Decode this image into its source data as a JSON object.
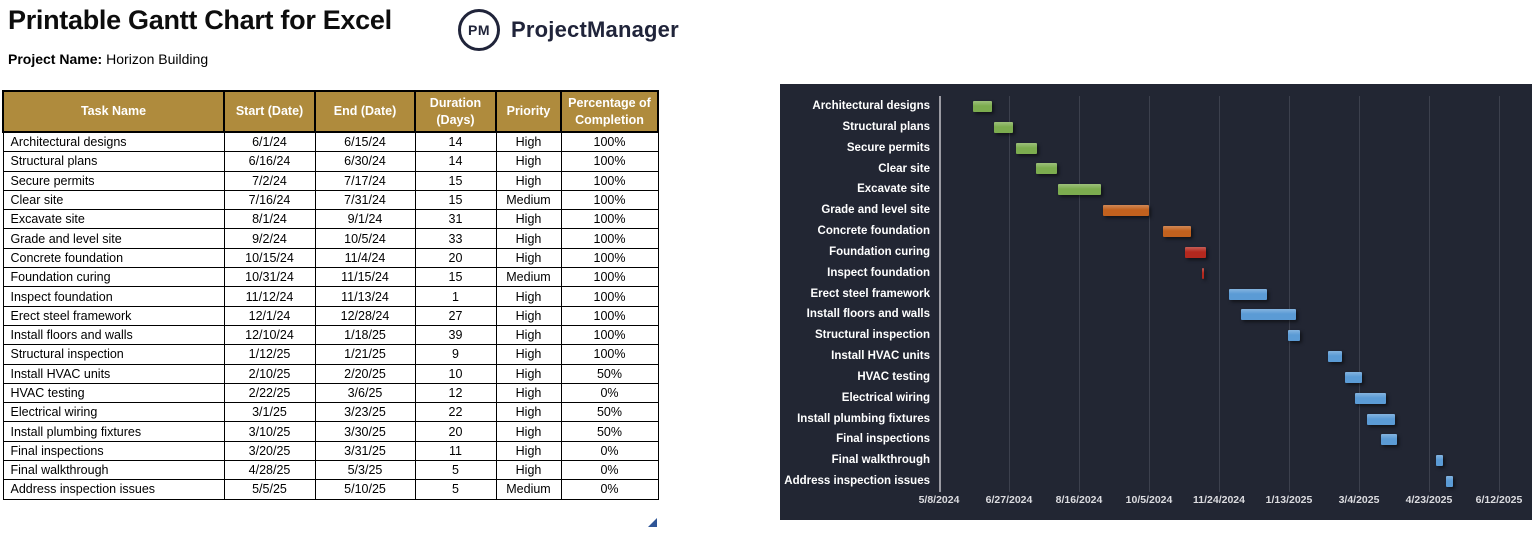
{
  "header": {
    "title": "Printable Gantt Chart for Excel",
    "project_label": "Project Name:",
    "project_name": "Horizon Building",
    "logo_monogram": "PM",
    "logo_text": "ProjectManager"
  },
  "table": {
    "columns": [
      "Task Name",
      "Start (Date)",
      "End (Date)",
      "Duration (Days)",
      "Priority",
      "Percentage of Completion"
    ],
    "rows": [
      [
        "Architectural designs",
        "6/1/24",
        "6/15/24",
        "14",
        "High",
        "100%"
      ],
      [
        "Structural plans",
        "6/16/24",
        "6/30/24",
        "14",
        "High",
        "100%"
      ],
      [
        "Secure permits",
        "7/2/24",
        "7/17/24",
        "15",
        "High",
        "100%"
      ],
      [
        "Clear site",
        "7/16/24",
        "7/31/24",
        "15",
        "Medium",
        "100%"
      ],
      [
        "Excavate site",
        "8/1/24",
        "9/1/24",
        "31",
        "High",
        "100%"
      ],
      [
        "Grade and level site",
        "9/2/24",
        "10/5/24",
        "33",
        "High",
        "100%"
      ],
      [
        "Concrete foundation",
        "10/15/24",
        "11/4/24",
        "20",
        "High",
        "100%"
      ],
      [
        "Foundation curing",
        "10/31/24",
        "11/15/24",
        "15",
        "Medium",
        "100%"
      ],
      [
        "Inspect foundation",
        "11/12/24",
        "11/13/24",
        "1",
        "High",
        "100%"
      ],
      [
        "Erect steel framework",
        "12/1/24",
        "12/28/24",
        "27",
        "High",
        "100%"
      ],
      [
        "Install floors and walls",
        "12/10/24",
        "1/18/25",
        "39",
        "High",
        "100%"
      ],
      [
        "Structural inspection",
        "1/12/25",
        "1/21/25",
        "9",
        "High",
        "100%"
      ],
      [
        "Install HVAC units",
        "2/10/25",
        "2/20/25",
        "10",
        "High",
        "50%"
      ],
      [
        "HVAC testing",
        "2/22/25",
        "3/6/25",
        "12",
        "High",
        "0%"
      ],
      [
        "Electrical wiring",
        "3/1/25",
        "3/23/25",
        "22",
        "High",
        "50%"
      ],
      [
        "Install plumbing fixtures",
        "3/10/25",
        "3/30/25",
        "20",
        "High",
        "50%"
      ],
      [
        "Final inspections",
        "3/20/25",
        "3/31/25",
        "11",
        "High",
        "0%"
      ],
      [
        "Final walkthrough",
        "4/28/25",
        "5/3/25",
        "5",
        "High",
        "0%"
      ],
      [
        "Address inspection issues",
        "5/5/25",
        "5/10/25",
        "5",
        "Medium",
        "0%"
      ]
    ]
  },
  "chart_data": {
    "type": "gantt-bar",
    "x_axis": {
      "start": "5/8/2024",
      "tick_interval_days": 50,
      "ticks": [
        "5/8/2024",
        "6/27/2024",
        "8/16/2024",
        "10/5/2024",
        "11/24/2024",
        "1/13/2025",
        "3/4/2025",
        "4/23/2025",
        "6/12/2025"
      ]
    },
    "palette": {
      "green": "#7cac4f",
      "orange": "#c2611e",
      "red": "#b3281e",
      "blue": "#5b9bd5"
    },
    "tasks": [
      {
        "name": "Architectural designs",
        "start": "6/1/24",
        "end": "6/15/24",
        "color": "green"
      },
      {
        "name": "Structural plans",
        "start": "6/16/24",
        "end": "6/30/24",
        "color": "green"
      },
      {
        "name": "Secure permits",
        "start": "7/2/24",
        "end": "7/17/24",
        "color": "green"
      },
      {
        "name": "Clear site",
        "start": "7/16/24",
        "end": "7/31/24",
        "color": "green"
      },
      {
        "name": "Excavate site",
        "start": "8/1/24",
        "end": "9/1/24",
        "color": "green"
      },
      {
        "name": "Grade and level site",
        "start": "9/2/24",
        "end": "10/5/24",
        "color": "orange"
      },
      {
        "name": "Concrete foundation",
        "start": "10/15/24",
        "end": "11/4/24",
        "color": "orange"
      },
      {
        "name": "Foundation curing",
        "start": "10/31/24",
        "end": "11/15/24",
        "color": "red"
      },
      {
        "name": "Inspect foundation",
        "start": "11/12/24",
        "end": "11/13/24",
        "color": "red"
      },
      {
        "name": "Erect steel framework",
        "start": "12/1/24",
        "end": "12/28/24",
        "color": "blue"
      },
      {
        "name": "Install floors and walls",
        "start": "12/10/24",
        "end": "1/18/25",
        "color": "blue"
      },
      {
        "name": "Structural inspection",
        "start": "1/12/25",
        "end": "1/21/25",
        "color": "blue"
      },
      {
        "name": "Install HVAC units",
        "start": "2/10/25",
        "end": "2/20/25",
        "color": "blue"
      },
      {
        "name": "HVAC testing",
        "start": "2/22/25",
        "end": "3/6/25",
        "color": "blue"
      },
      {
        "name": "Electrical wiring",
        "start": "3/1/25",
        "end": "3/23/25",
        "color": "blue"
      },
      {
        "name": "Install plumbing fixtures",
        "start": "3/10/25",
        "end": "3/30/25",
        "color": "blue"
      },
      {
        "name": "Final inspections",
        "start": "3/20/25",
        "end": "3/31/25",
        "color": "blue"
      },
      {
        "name": "Final walkthrough",
        "start": "4/28/25",
        "end": "5/3/25",
        "color": "blue"
      },
      {
        "name": "Address inspection issues",
        "start": "5/5/25",
        "end": "5/10/25",
        "color": "blue"
      }
    ]
  },
  "colors": {
    "table_header_bg": "#af8b3d",
    "table_header_text": "#ffffff",
    "chart_bg": "#222633",
    "chart_text": "#ffffff",
    "gridline": "#3c404d",
    "axis_line": "#9b9ba3",
    "logo_navy": "#20243a",
    "selection_handle": "#2f5597"
  }
}
